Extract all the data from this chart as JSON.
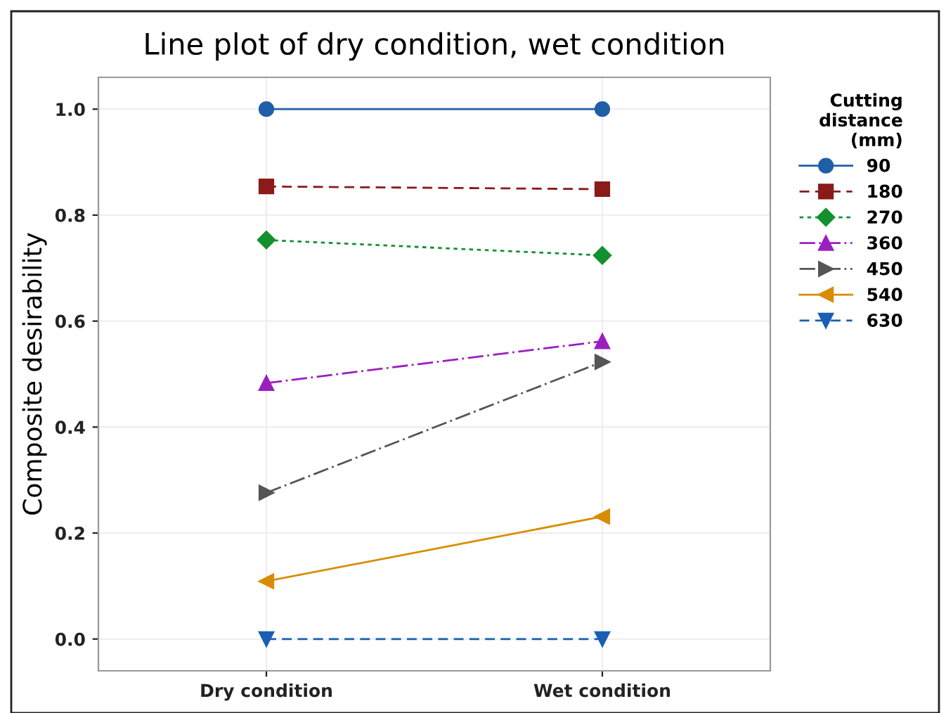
{
  "chart_data": {
    "type": "line",
    "title": "Line plot of dry condition, wet condition",
    "ylabel": "Composite desirability",
    "legend_title": "Cutting\ndistance\n(mm)",
    "categories": [
      "Dry condition",
      "Wet condition"
    ],
    "series": [
      {
        "name": "90",
        "color": "#1f5fa8",
        "values": [
          1.0,
          1.0
        ],
        "marker": "circle",
        "line_style": "solid"
      },
      {
        "name": "180",
        "color": "#8b1a1a",
        "values": [
          0.854,
          0.849
        ],
        "marker": "square",
        "line_style": "dashed"
      },
      {
        "name": "270",
        "color": "#12912f",
        "values": [
          0.753,
          0.724
        ],
        "marker": "diamond",
        "line_style": "dotted"
      },
      {
        "name": "360",
        "color": "#9b1fbf",
        "values": [
          0.483,
          0.562
        ],
        "marker": "triangle",
        "line_style": "dashdot"
      },
      {
        "name": "450",
        "color": "#555555",
        "values": [
          0.276,
          0.523
        ],
        "marker": "triangle_right",
        "line_style": "dashdot"
      },
      {
        "name": "540",
        "color": "#d98c00",
        "values": [
          0.109,
          0.231
        ],
        "marker": "triangle_left",
        "line_style": "solid"
      },
      {
        "name": "630",
        "color": "#1a5fb4",
        "values": [
          0.0,
          0.0
        ],
        "marker": "triangle_down",
        "line_style": "dashed"
      }
    ],
    "ylim": [
      -0.06,
      1.06
    ],
    "yticks": [
      {
        "value": 0,
        "label": "0.0"
      },
      {
        "value": 0.2,
        "label": "0.2"
      },
      {
        "value": 0.4,
        "label": "0.4"
      },
      {
        "value": 0.6,
        "label": "0.6"
      },
      {
        "value": 0.8,
        "label": "0.8"
      },
      {
        "value": 1.0,
        "label": "1.0"
      }
    ],
    "grid": true,
    "legend": "right"
  }
}
